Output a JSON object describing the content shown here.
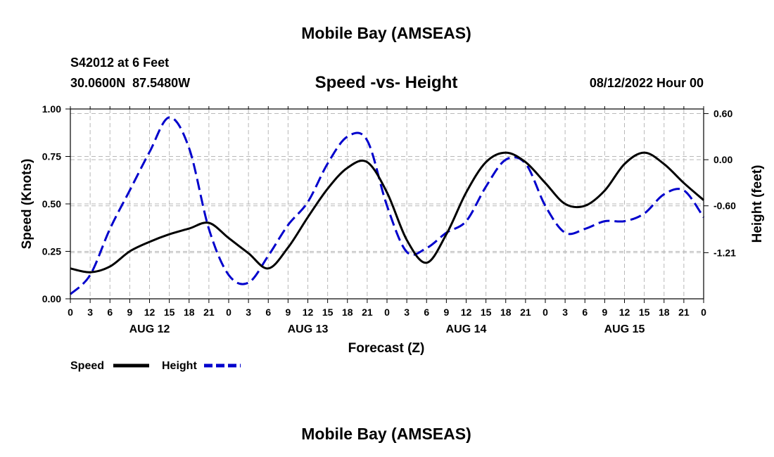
{
  "header": {
    "title": "Mobile Bay (AMSEAS)",
    "station": "S42012 at 6 Feet",
    "coords": "30.0600N  87.5480W",
    "plot_title": "Speed -vs- Height",
    "datetime": "08/12/2022 Hour 00"
  },
  "footer": {
    "title": "Mobile Bay (AMSEAS)"
  },
  "chart_data": {
    "type": "line",
    "xlabel": "Forecast (Z)",
    "ylabel": "Speed (Knots)",
    "y2label": "Height (feet)",
    "xlim": [
      0,
      96
    ],
    "ylim": [
      0,
      1
    ],
    "y2lim": [
      -1.81,
      0.66
    ],
    "x_tick_labels": [
      "0",
      "3",
      "6",
      "9",
      "12",
      "15",
      "18",
      "21",
      "0",
      "3",
      "6",
      "9",
      "12",
      "15",
      "18",
      "21",
      "0",
      "3",
      "6",
      "9",
      "12",
      "15",
      "18",
      "21",
      "0",
      "3",
      "6",
      "9",
      "12",
      "15",
      "18",
      "21",
      "0"
    ],
    "day_labels": [
      "AUG 12",
      "AUG 13",
      "AUG 14",
      "AUG 15"
    ],
    "y_ticks": [
      "0.00",
      "0.25",
      "0.50",
      "0.75",
      "1.00"
    ],
    "y2_ticks": [
      "0.60",
      "0.00",
      "-0.60",
      "-1.21"
    ],
    "y2_tick_values": [
      0.6,
      0.0,
      -0.6,
      -1.21
    ],
    "grid": true,
    "colors": {
      "speed": "#000000",
      "height": "#0000cc"
    },
    "series": [
      {
        "name": "Speed",
        "axis": "left",
        "style": "solid",
        "x": [
          0,
          3,
          6,
          9,
          12,
          15,
          18,
          21,
          24,
          27,
          30,
          33,
          36,
          39,
          42,
          45,
          48,
          51,
          54,
          57,
          60,
          63,
          66,
          69,
          72,
          75,
          78,
          81,
          84,
          87,
          90,
          93,
          96
        ],
        "values": [
          0.16,
          0.14,
          0.17,
          0.25,
          0.3,
          0.34,
          0.37,
          0.4,
          0.32,
          0.24,
          0.16,
          0.27,
          0.43,
          0.58,
          0.69,
          0.72,
          0.56,
          0.31,
          0.19,
          0.34,
          0.56,
          0.72,
          0.77,
          0.72,
          0.61,
          0.5,
          0.49,
          0.57,
          0.71,
          0.77,
          0.71,
          0.61,
          0.52
        ]
      },
      {
        "name": "Height",
        "axis": "right",
        "style": "dashed",
        "x": [
          0,
          3,
          6,
          9,
          12,
          15,
          18,
          21,
          24,
          27,
          30,
          33,
          36,
          39,
          42,
          45,
          48,
          51,
          54,
          57,
          60,
          63,
          66,
          69,
          72,
          75,
          78,
          81,
          84,
          87,
          90,
          93,
          96
        ],
        "values": [
          -1.75,
          -1.5,
          -0.9,
          -0.4,
          0.1,
          0.55,
          0.15,
          -0.9,
          -1.5,
          -1.6,
          -1.25,
          -0.85,
          -0.55,
          -0.05,
          0.3,
          0.25,
          -0.6,
          -1.2,
          -1.15,
          -0.95,
          -0.8,
          -0.35,
          0.0,
          -0.05,
          -0.6,
          -0.95,
          -0.9,
          -0.8,
          -0.8,
          -0.7,
          -0.45,
          -0.4,
          -0.75
        ]
      }
    ],
    "legend": {
      "position": "bottom-left",
      "entries": [
        "Speed",
        "Height"
      ]
    }
  }
}
